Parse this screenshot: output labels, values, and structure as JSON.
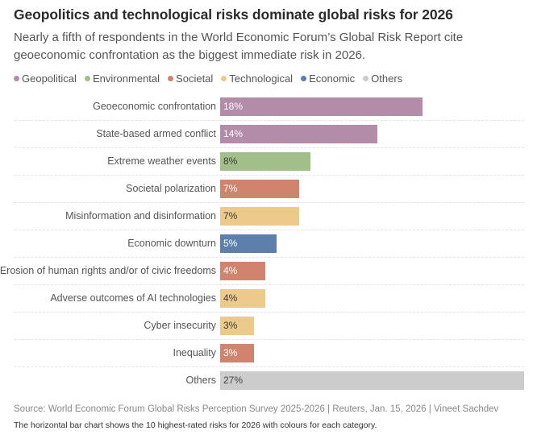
{
  "header": {
    "title": "Geopolitics and technological risks dominate global risks for 2026",
    "subtitle": "Nearly a fifth of respondents in the World Economic Forum’s Global Risk Report cite geoeconomic confrontation as the biggest immediate risk in 2026."
  },
  "legend": [
    {
      "label": "Geopolitical",
      "color": "#b38caa"
    },
    {
      "label": "Environmental",
      "color": "#a2bf8a"
    },
    {
      "label": "Societal",
      "color": "#d1846d"
    },
    {
      "label": "Technological",
      "color": "#ebca8b"
    },
    {
      "label": "Economic",
      "color": "#5c7fab"
    },
    {
      "label": "Others",
      "color": "#cccccc"
    }
  ],
  "chart_data": {
    "type": "bar",
    "orientation": "horizontal",
    "title": "Geopolitics and technological risks dominate global risks for 2026",
    "xlabel": "",
    "ylabel": "",
    "unit": "%",
    "xlim": [
      0,
      27
    ],
    "grid": false,
    "legend_position": "top-left",
    "categories": [
      "Geoeconomic confrontation",
      "State-based armed conflict",
      "Extreme weather events",
      "Societal polarization",
      "Misinformation and disinformation",
      "Economic downturn",
      "Erosion of human rights and/or of civic freedoms",
      "Adverse outcomes of AI technologies",
      "Cyber insecurity",
      "Inequality",
      "Others"
    ],
    "values": [
      18,
      14,
      8,
      7,
      7,
      5,
      4,
      4,
      3,
      3,
      27
    ],
    "value_labels": [
      "18%",
      "14%",
      "8%",
      "7%",
      "7%",
      "5%",
      "4%",
      "4%",
      "3%",
      "3%",
      "27%"
    ],
    "category_group": [
      "Geopolitical",
      "Geopolitical",
      "Environmental",
      "Societal",
      "Technological",
      "Economic",
      "Societal",
      "Technological",
      "Technological",
      "Societal",
      "Others"
    ]
  },
  "label_colors": {
    "Geopolitical": "#ffffff",
    "Environmental": "#3a3a3a",
    "Societal": "#ffffff",
    "Technological": "#3a3a3a",
    "Economic": "#ffffff",
    "Others": "#444444"
  },
  "footer": {
    "source": "Source: World Economic Forum Global Risks Perception Survey 2025-2026 | Reuters, Jan. 15, 2026  | Vineet Sachdev",
    "caption": "The horizontal bar chart shows the 10 highest-rated risks for 2026 with colours for each category."
  }
}
